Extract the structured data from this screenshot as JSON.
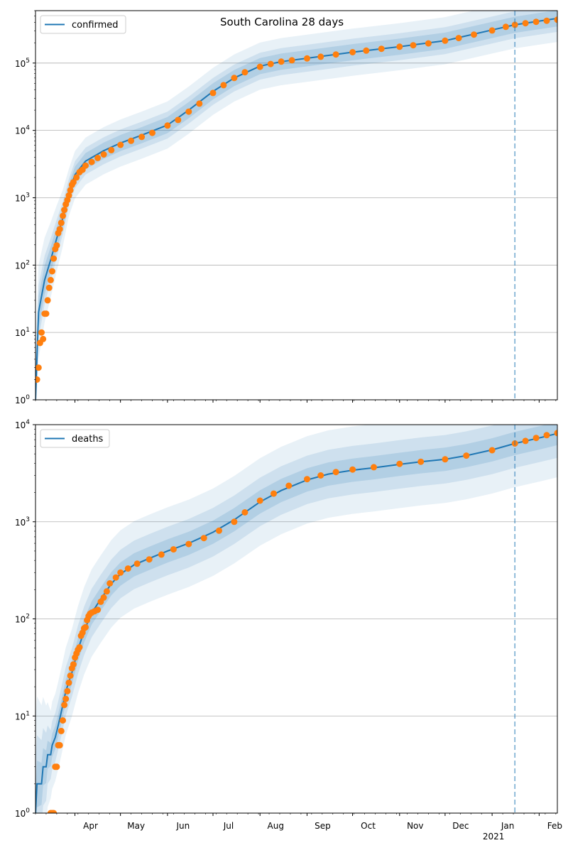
{
  "figure": {
    "title": "South Carolina 28 days",
    "colors": {
      "fit": "#1f77b4",
      "band": "#1f77b4",
      "observed": "#ff7f0e",
      "forecast_marker": "#1f77b4",
      "grid": "#b0b0b0"
    },
    "x_tick_labels": [
      "Apr",
      "May",
      "Jun",
      "Jul",
      "Aug",
      "Sep",
      "Oct",
      "Nov",
      "Dec",
      "Jan",
      "Feb"
    ],
    "x_year_label": "2021"
  },
  "chart_data": [
    {
      "type": "line",
      "legend": "confirmed",
      "legend_placement": "upper-left",
      "yscale": "log",
      "ylim": [
        1,
        600000
      ],
      "y_ticks": [
        1,
        10,
        100,
        1000,
        10000,
        100000
      ],
      "y_tick_labels": [
        "10^0",
        "10^1",
        "10^2",
        "10^3",
        "10^4",
        "10^5"
      ],
      "xlim": [
        "2020-03-06",
        "2021-02-13"
      ],
      "grid": "horizontal",
      "forecast_start": "2021-01-16",
      "fit_line": [
        [
          "2020-03-06",
          1
        ],
        [
          "2020-03-08",
          20
        ],
        [
          "2020-03-12",
          60
        ],
        [
          "2020-03-16",
          120
        ],
        [
          "2020-03-20",
          250
        ],
        [
          "2020-03-24",
          500
        ],
        [
          "2020-03-28",
          1200
        ],
        [
          "2020-04-01",
          2200
        ],
        [
          "2020-04-08",
          3500
        ],
        [
          "2020-04-20",
          5000
        ],
        [
          "2020-05-01",
          6500
        ],
        [
          "2020-05-15",
          8500
        ],
        [
          "2020-06-01",
          12000
        ],
        [
          "2020-06-15",
          20000
        ],
        [
          "2020-07-01",
          38000
        ],
        [
          "2020-07-15",
          60000
        ],
        [
          "2020-08-01",
          90000
        ],
        [
          "2020-08-15",
          105000
        ],
        [
          "2020-09-01",
          118000
        ],
        [
          "2020-10-01",
          145000
        ],
        [
          "2020-11-01",
          175000
        ],
        [
          "2020-12-01",
          215000
        ],
        [
          "2021-01-01",
          310000
        ],
        [
          "2021-01-16",
          370000
        ],
        [
          "2021-02-01",
          420000
        ],
        [
          "2021-02-13",
          460000
        ]
      ],
      "band_width_log": [
        0.35,
        0.2,
        0.12
      ],
      "observed": [
        [
          "2020-03-06",
          2
        ],
        [
          "2020-03-07",
          2
        ],
        [
          "2020-03-08",
          3
        ],
        [
          "2020-03-09",
          7
        ],
        [
          "2020-03-10",
          10
        ],
        [
          "2020-03-11",
          8
        ],
        [
          "2020-03-12",
          19
        ],
        [
          "2020-03-13",
          19
        ],
        [
          "2020-03-14",
          30
        ],
        [
          "2020-03-15",
          46
        ],
        [
          "2020-03-16",
          60
        ],
        [
          "2020-03-17",
          81
        ],
        [
          "2020-03-18",
          125
        ],
        [
          "2020-03-19",
          173
        ],
        [
          "2020-03-20",
          196
        ],
        [
          "2020-03-21",
          298
        ],
        [
          "2020-03-22",
          342
        ],
        [
          "2020-03-23",
          424
        ],
        [
          "2020-03-24",
          539
        ],
        [
          "2020-03-25",
          660
        ],
        [
          "2020-03-26",
          800
        ],
        [
          "2020-03-27",
          925
        ],
        [
          "2020-03-28",
          1083
        ],
        [
          "2020-03-29",
          1293
        ],
        [
          "2020-03-30",
          1554
        ],
        [
          "2020-03-31",
          1700
        ],
        [
          "2020-04-02",
          2000
        ],
        [
          "2020-04-04",
          2400
        ],
        [
          "2020-04-06",
          2600
        ],
        [
          "2020-04-08",
          3000
        ],
        [
          "2020-04-12",
          3400
        ],
        [
          "2020-04-16",
          3900
        ],
        [
          "2020-04-20",
          4400
        ],
        [
          "2020-04-25",
          5100
        ],
        [
          "2020-05-01",
          6100
        ],
        [
          "2020-05-08",
          7000
        ],
        [
          "2020-05-15",
          8000
        ],
        [
          "2020-05-22",
          9200
        ],
        [
          "2020-06-01",
          11800
        ],
        [
          "2020-06-08",
          14300
        ],
        [
          "2020-06-15",
          19000
        ],
        [
          "2020-06-22",
          25000
        ],
        [
          "2020-07-01",
          36000
        ],
        [
          "2020-07-08",
          47000
        ],
        [
          "2020-07-15",
          60000
        ],
        [
          "2020-07-22",
          73000
        ],
        [
          "2020-08-01",
          88000
        ],
        [
          "2020-08-08",
          97000
        ],
        [
          "2020-08-15",
          105000
        ],
        [
          "2020-08-22",
          110000
        ],
        [
          "2020-09-01",
          117000
        ],
        [
          "2020-09-10",
          124000
        ],
        [
          "2020-09-20",
          134000
        ],
        [
          "2020-10-01",
          145000
        ],
        [
          "2020-10-10",
          153000
        ],
        [
          "2020-10-20",
          163000
        ],
        [
          "2020-11-01",
          175000
        ],
        [
          "2020-11-10",
          184000
        ],
        [
          "2020-11-20",
          196000
        ],
        [
          "2020-12-01",
          215000
        ],
        [
          "2020-12-10",
          235000
        ],
        [
          "2020-12-20",
          265000
        ],
        [
          "2021-01-01",
          305000
        ],
        [
          "2021-01-10",
          345000
        ],
        [
          "2021-01-16",
          370000
        ],
        [
          "2021-01-23",
          390000
        ],
        [
          "2021-01-30",
          410000
        ],
        [
          "2021-02-06",
          425000
        ],
        [
          "2021-02-13",
          440000
        ]
      ]
    },
    {
      "type": "line",
      "legend": "deaths",
      "legend_placement": "upper-left",
      "yscale": "log",
      "ylim": [
        1,
        10000
      ],
      "y_ticks": [
        1,
        10,
        100,
        1000,
        10000
      ],
      "y_tick_labels": [
        "10^0",
        "10^1",
        "10^2",
        "10^3",
        "10^4"
      ],
      "xlim": [
        "2020-03-06",
        "2021-02-13"
      ],
      "grid": "horizontal",
      "forecast_start": "2021-01-16",
      "fit_line": [
        [
          "2020-03-06",
          1
        ],
        [
          "2020-03-07",
          2
        ],
        [
          "2020-03-10",
          2
        ],
        [
          "2020-03-11",
          3
        ],
        [
          "2020-03-13",
          3
        ],
        [
          "2020-03-14",
          4
        ],
        [
          "2020-03-16",
          4
        ],
        [
          "2020-03-17",
          5
        ],
        [
          "2020-03-19",
          6
        ],
        [
          "2020-03-21",
          8
        ],
        [
          "2020-03-23",
          11
        ],
        [
          "2020-03-26",
          18
        ],
        [
          "2020-03-30",
          28
        ],
        [
          "2020-04-03",
          48
        ],
        [
          "2020-04-07",
          75
        ],
        [
          "2020-04-12",
          115
        ],
        [
          "2020-04-18",
          160
        ],
        [
          "2020-04-25",
          230
        ],
        [
          "2020-05-01",
          290
        ],
        [
          "2020-05-10",
          360
        ],
        [
          "2020-05-20",
          420
        ],
        [
          "2020-06-01",
          500
        ],
        [
          "2020-06-15",
          600
        ],
        [
          "2020-07-01",
          780
        ],
        [
          "2020-07-15",
          1050
        ],
        [
          "2020-08-01",
          1600
        ],
        [
          "2020-08-15",
          2100
        ],
        [
          "2020-09-01",
          2700
        ],
        [
          "2020-09-15",
          3100
        ],
        [
          "2020-10-01",
          3400
        ],
        [
          "2020-10-15",
          3600
        ],
        [
          "2020-11-01",
          3900
        ],
        [
          "2020-11-15",
          4150
        ],
        [
          "2020-12-01",
          4400
        ],
        [
          "2020-12-15",
          4800
        ],
        [
          "2021-01-01",
          5500
        ],
        [
          "2021-01-16",
          6400
        ],
        [
          "2021-02-01",
          7300
        ],
        [
          "2021-02-13",
          8100
        ]
      ],
      "band_width_log": [
        0.45,
        0.25,
        0.12
      ],
      "observed": [
        [
          "2020-03-16",
          1
        ],
        [
          "2020-03-17",
          1
        ],
        [
          "2020-03-18",
          1
        ],
        [
          "2020-03-19",
          3
        ],
        [
          "2020-03-20",
          3
        ],
        [
          "2020-03-21",
          5
        ],
        [
          "2020-03-22",
          5
        ],
        [
          "2020-03-23",
          7
        ],
        [
          "2020-03-24",
          9
        ],
        [
          "2020-03-25",
          13
        ],
        [
          "2020-03-26",
          15
        ],
        [
          "2020-03-27",
          18
        ],
        [
          "2020-03-28",
          22
        ],
        [
          "2020-03-29",
          26
        ],
        [
          "2020-03-30",
          31
        ],
        [
          "2020-03-31",
          34
        ],
        [
          "2020-04-01",
          40
        ],
        [
          "2020-04-02",
          44
        ],
        [
          "2020-04-03",
          48
        ],
        [
          "2020-04-04",
          51
        ],
        [
          "2020-04-05",
          67
        ],
        [
          "2020-04-06",
          72
        ],
        [
          "2020-04-07",
          80
        ],
        [
          "2020-04-08",
          82
        ],
        [
          "2020-04-09",
          97
        ],
        [
          "2020-04-10",
          107
        ],
        [
          "2020-04-11",
          113
        ],
        [
          "2020-04-12",
          116
        ],
        [
          "2020-04-14",
          120
        ],
        [
          "2020-04-16",
          124
        ],
        [
          "2020-04-18",
          150
        ],
        [
          "2020-04-20",
          166
        ],
        [
          "2020-04-22",
          192
        ],
        [
          "2020-04-24",
          232
        ],
        [
          "2020-04-28",
          267
        ],
        [
          "2020-05-01",
          300
        ],
        [
          "2020-05-06",
          330
        ],
        [
          "2020-05-12",
          370
        ],
        [
          "2020-05-20",
          410
        ],
        [
          "2020-05-28",
          460
        ],
        [
          "2020-06-05",
          520
        ],
        [
          "2020-06-15",
          590
        ],
        [
          "2020-06-25",
          680
        ],
        [
          "2020-07-05",
          810
        ],
        [
          "2020-07-15",
          1000
        ],
        [
          "2020-07-22",
          1250
        ],
        [
          "2020-08-01",
          1650
        ],
        [
          "2020-08-10",
          1950
        ],
        [
          "2020-08-20",
          2350
        ],
        [
          "2020-09-01",
          2750
        ],
        [
          "2020-09-10",
          3000
        ],
        [
          "2020-09-20",
          3250
        ],
        [
          "2020-10-01",
          3450
        ],
        [
          "2020-10-15",
          3650
        ],
        [
          "2020-11-01",
          3950
        ],
        [
          "2020-11-15",
          4150
        ],
        [
          "2020-12-01",
          4400
        ],
        [
          "2020-12-15",
          4800
        ],
        [
          "2021-01-01",
          5450
        ],
        [
          "2021-01-16",
          6400
        ],
        [
          "2021-01-23",
          6800
        ],
        [
          "2021-01-30",
          7300
        ],
        [
          "2021-02-06",
          7800
        ],
        [
          "2021-02-13",
          8200
        ]
      ]
    }
  ]
}
